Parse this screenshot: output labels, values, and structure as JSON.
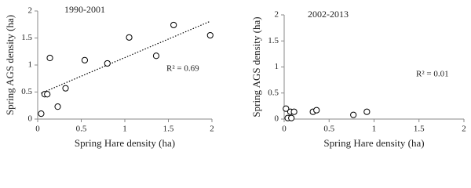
{
  "chart_data": [
    {
      "type": "scatter",
      "title": "1990-2001",
      "x_label": "Spring Hare density (ha)",
      "y_label": "Spring AGS density (ha)",
      "annotation": "R² = 0.69",
      "trendline": true,
      "x": [
        0.04,
        0.08,
        0.11,
        0.14,
        0.23,
        0.32,
        0.54,
        0.8,
        1.05,
        1.36,
        1.56,
        1.98
      ],
      "values": [
        0.1,
        0.46,
        0.46,
        1.13,
        0.23,
        0.57,
        1.09,
        1.03,
        1.51,
        1.17,
        1.74,
        1.55
      ],
      "color": "#000000",
      "xlim": [
        0,
        2
      ],
      "xticks": [
        0,
        0.5,
        1,
        1.5,
        2
      ],
      "ylim": [
        0,
        2
      ],
      "yticks": [
        0,
        0.5,
        1,
        1.5,
        2
      ]
    },
    {
      "type": "scatter",
      "title": "2002-2013",
      "x_label": "Spring Hare density (ha)",
      "y_label": "Spring AGS density (ha)",
      "annotation": "R² = 0.01",
      "trendline": false,
      "x": [
        0.02,
        0.04,
        0.08,
        0.07,
        0.11,
        0.32,
        0.36,
        0.77,
        0.92
      ],
      "values": [
        0.2,
        0.02,
        0.02,
        0.14,
        0.14,
        0.14,
        0.17,
        0.08,
        0.14
      ],
      "color": "#000000",
      "xlim": [
        0,
        2
      ],
      "xticks": [
        0,
        0.5,
        1,
        1.5,
        2
      ],
      "ylim": [
        0,
        2
      ],
      "yticks": [
        0,
        0.5,
        1,
        1.5,
        2
      ]
    }
  ]
}
